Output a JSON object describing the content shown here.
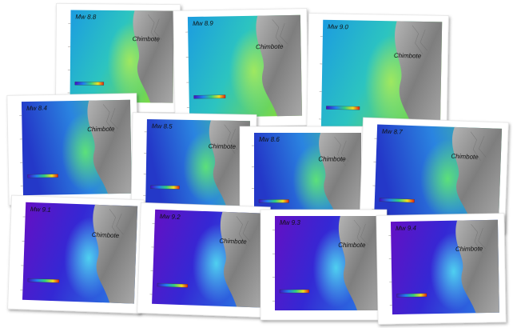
{
  "panels": [
    {
      "label": "Mw 8.8",
      "place": "Chimbote"
    },
    {
      "label": "Mw 8.9",
      "place": "Chimbote"
    },
    {
      "label": "Mw 9.0",
      "place": "Chimbote"
    },
    {
      "label": "Mw 8.4",
      "place": "Chimbote"
    },
    {
      "label": "Mw 8.5",
      "place": "Chimbote"
    },
    {
      "label": "Mw 8.6",
      "place": "Chimbote"
    },
    {
      "label": "Mw 8.7",
      "place": "Chimbote"
    },
    {
      "label": "Mw 9.1",
      "place": "Chimbote"
    },
    {
      "label": "Mw 9.2",
      "place": "Chimbote"
    },
    {
      "label": "Mw 9.3",
      "place": "Chimbote"
    },
    {
      "label": "Mw 9.4",
      "place": "Chimbote"
    }
  ]
}
